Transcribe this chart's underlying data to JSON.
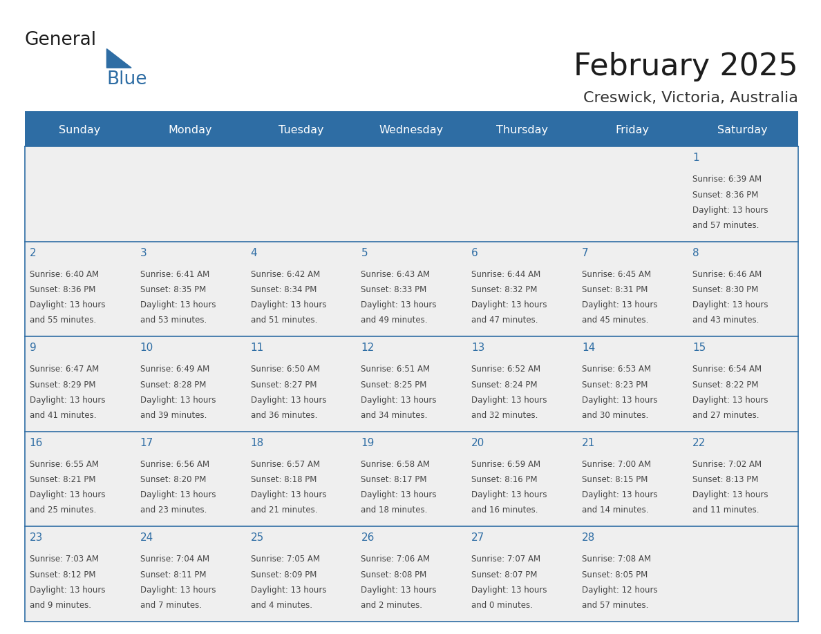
{
  "title": "February 2025",
  "subtitle": "Creswick, Victoria, Australia",
  "header_bg": "#2E6DA4",
  "header_text": "#FFFFFF",
  "cell_bg": "#EFEFEF",
  "day_names": [
    "Sunday",
    "Monday",
    "Tuesday",
    "Wednesday",
    "Thursday",
    "Friday",
    "Saturday"
  ],
  "line_color": "#2E6DA4",
  "day_number_color": "#2E6DA4",
  "info_color": "#444444",
  "calendar": [
    [
      null,
      null,
      null,
      null,
      null,
      null,
      {
        "day": 1,
        "sunrise": "6:39 AM",
        "sunset": "8:36 PM",
        "daylight_line1": "Daylight: 13 hours",
        "daylight_line2": "and 57 minutes."
      }
    ],
    [
      {
        "day": 2,
        "sunrise": "6:40 AM",
        "sunset": "8:36 PM",
        "daylight_line1": "Daylight: 13 hours",
        "daylight_line2": "and 55 minutes."
      },
      {
        "day": 3,
        "sunrise": "6:41 AM",
        "sunset": "8:35 PM",
        "daylight_line1": "Daylight: 13 hours",
        "daylight_line2": "and 53 minutes."
      },
      {
        "day": 4,
        "sunrise": "6:42 AM",
        "sunset": "8:34 PM",
        "daylight_line1": "Daylight: 13 hours",
        "daylight_line2": "and 51 minutes."
      },
      {
        "day": 5,
        "sunrise": "6:43 AM",
        "sunset": "8:33 PM",
        "daylight_line1": "Daylight: 13 hours",
        "daylight_line2": "and 49 minutes."
      },
      {
        "day": 6,
        "sunrise": "6:44 AM",
        "sunset": "8:32 PM",
        "daylight_line1": "Daylight: 13 hours",
        "daylight_line2": "and 47 minutes."
      },
      {
        "day": 7,
        "sunrise": "6:45 AM",
        "sunset": "8:31 PM",
        "daylight_line1": "Daylight: 13 hours",
        "daylight_line2": "and 45 minutes."
      },
      {
        "day": 8,
        "sunrise": "6:46 AM",
        "sunset": "8:30 PM",
        "daylight_line1": "Daylight: 13 hours",
        "daylight_line2": "and 43 minutes."
      }
    ],
    [
      {
        "day": 9,
        "sunrise": "6:47 AM",
        "sunset": "8:29 PM",
        "daylight_line1": "Daylight: 13 hours",
        "daylight_line2": "and 41 minutes."
      },
      {
        "day": 10,
        "sunrise": "6:49 AM",
        "sunset": "8:28 PM",
        "daylight_line1": "Daylight: 13 hours",
        "daylight_line2": "and 39 minutes."
      },
      {
        "day": 11,
        "sunrise": "6:50 AM",
        "sunset": "8:27 PM",
        "daylight_line1": "Daylight: 13 hours",
        "daylight_line2": "and 36 minutes."
      },
      {
        "day": 12,
        "sunrise": "6:51 AM",
        "sunset": "8:25 PM",
        "daylight_line1": "Daylight: 13 hours",
        "daylight_line2": "and 34 minutes."
      },
      {
        "day": 13,
        "sunrise": "6:52 AM",
        "sunset": "8:24 PM",
        "daylight_line1": "Daylight: 13 hours",
        "daylight_line2": "and 32 minutes."
      },
      {
        "day": 14,
        "sunrise": "6:53 AM",
        "sunset": "8:23 PM",
        "daylight_line1": "Daylight: 13 hours",
        "daylight_line2": "and 30 minutes."
      },
      {
        "day": 15,
        "sunrise": "6:54 AM",
        "sunset": "8:22 PM",
        "daylight_line1": "Daylight: 13 hours",
        "daylight_line2": "and 27 minutes."
      }
    ],
    [
      {
        "day": 16,
        "sunrise": "6:55 AM",
        "sunset": "8:21 PM",
        "daylight_line1": "Daylight: 13 hours",
        "daylight_line2": "and 25 minutes."
      },
      {
        "day": 17,
        "sunrise": "6:56 AM",
        "sunset": "8:20 PM",
        "daylight_line1": "Daylight: 13 hours",
        "daylight_line2": "and 23 minutes."
      },
      {
        "day": 18,
        "sunrise": "6:57 AM",
        "sunset": "8:18 PM",
        "daylight_line1": "Daylight: 13 hours",
        "daylight_line2": "and 21 minutes."
      },
      {
        "day": 19,
        "sunrise": "6:58 AM",
        "sunset": "8:17 PM",
        "daylight_line1": "Daylight: 13 hours",
        "daylight_line2": "and 18 minutes."
      },
      {
        "day": 20,
        "sunrise": "6:59 AM",
        "sunset": "8:16 PM",
        "daylight_line1": "Daylight: 13 hours",
        "daylight_line2": "and 16 minutes."
      },
      {
        "day": 21,
        "sunrise": "7:00 AM",
        "sunset": "8:15 PM",
        "daylight_line1": "Daylight: 13 hours",
        "daylight_line2": "and 14 minutes."
      },
      {
        "day": 22,
        "sunrise": "7:02 AM",
        "sunset": "8:13 PM",
        "daylight_line1": "Daylight: 13 hours",
        "daylight_line2": "and 11 minutes."
      }
    ],
    [
      {
        "day": 23,
        "sunrise": "7:03 AM",
        "sunset": "8:12 PM",
        "daylight_line1": "Daylight: 13 hours",
        "daylight_line2": "and 9 minutes."
      },
      {
        "day": 24,
        "sunrise": "7:04 AM",
        "sunset": "8:11 PM",
        "daylight_line1": "Daylight: 13 hours",
        "daylight_line2": "and 7 minutes."
      },
      {
        "day": 25,
        "sunrise": "7:05 AM",
        "sunset": "8:09 PM",
        "daylight_line1": "Daylight: 13 hours",
        "daylight_line2": "and 4 minutes."
      },
      {
        "day": 26,
        "sunrise": "7:06 AM",
        "sunset": "8:08 PM",
        "daylight_line1": "Daylight: 13 hours",
        "daylight_line2": "and 2 minutes."
      },
      {
        "day": 27,
        "sunrise": "7:07 AM",
        "sunset": "8:07 PM",
        "daylight_line1": "Daylight: 13 hours",
        "daylight_line2": "and 0 minutes."
      },
      {
        "day": 28,
        "sunrise": "7:08 AM",
        "sunset": "8:05 PM",
        "daylight_line1": "Daylight: 12 hours",
        "daylight_line2": "and 57 minutes."
      },
      null
    ]
  ]
}
